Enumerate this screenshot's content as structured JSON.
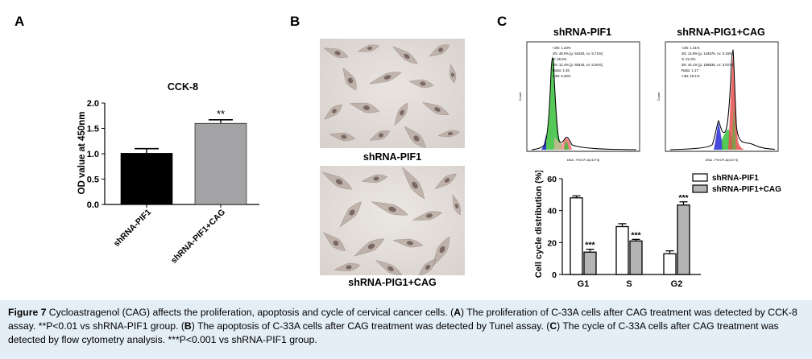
{
  "panels": {
    "a": "A",
    "b": "B",
    "c": "C"
  },
  "panel_b": {
    "top_label": "shRNA-PIF1",
    "bottom_label": "shRNA-PIG1+CAG"
  },
  "panel_c_flow": {
    "left_title": "shRNA-PIF1",
    "right_title": "shRNA-PIG1+CAG",
    "left_stats": [
      "<2N: 1.23%",
      "2N: 48.0%  [μ: 64320, cv: 5.71%]",
      "S: 29.2%",
      "4N: 12.4%  [μ: 93440, cv: 8.25%]",
      "Ratio: 1.45",
      ">4N: 9.20%"
    ],
    "right_stats": [
      "<2N: 1.31%",
      "2N: 14.9%  [μ: 144576, cv: 3.16%]",
      "S: 21.0%",
      "4N: 44.1%  [μ: 169536, cv: 3.01%]",
      "Ratio: 1.17",
      ">4N: 19.1%"
    ],
    "y_axis": "Count",
    "x_axis": "DNA - PerCP-A(x10^4)"
  },
  "caption": {
    "figure_label": "Figure 7",
    "intro": " Cycloastragenol (CAG) affects the proliferation, apoptosis and cycle of cervical cancer cells. (",
    "a": "A",
    "a_text": ") The proliferation of C-33A cells after CAG treatment was detected by CCK-8 assay. **P<0.01 vs shRNA-PIF1 group. (",
    "b": "B",
    "b_text": ") The apoptosis of C-33A cells after CAG treatment was detected by Tunel assay. (",
    "c": "C",
    "c_text": ") The cycle of C-33A cells after CAG treatment was detected by flow cytometry analysis. ***P<0.001 vs shRNA-PIF1 group."
  },
  "chart_data": [
    {
      "type": "bar",
      "title": "CCK-8",
      "ylabel": "OD value at 450nm",
      "xlabel": "",
      "categories": [
        "shRNA-PIF1",
        "shRNA-PIF1+CAG"
      ],
      "values": [
        1.01,
        1.6
      ],
      "errors": [
        0.09,
        0.07
      ],
      "colors": [
        "#000000",
        "#a3a3a5"
      ],
      "ylim": [
        0,
        2.0
      ],
      "yticks": [
        "0.0",
        "0.5",
        "1.0",
        "1.5",
        "2.0"
      ],
      "annotations": [
        "",
        "**"
      ]
    },
    {
      "type": "bar",
      "ylabel": "Cell cycle distribution (%)",
      "xlabel": "",
      "categories": [
        "G1",
        "S",
        "G2"
      ],
      "ylim": [
        0,
        60
      ],
      "yticks": [
        "0",
        "20",
        "40",
        "60"
      ],
      "legend_position": "top-right",
      "series": [
        {
          "name": "shRNA-PIF1",
          "color": "#ffffff",
          "values": [
            48,
            30,
            13
          ],
          "errors": [
            1.2,
            1.8,
            1.8
          ],
          "annotations": [
            "",
            "",
            ""
          ]
        },
        {
          "name": "shRNA-PIF1+CAG",
          "color": "#b4b4b4",
          "values": [
            14,
            21,
            43.5
          ],
          "errors": [
            1.8,
            1.0,
            2.0
          ],
          "annotations": [
            "***",
            "***",
            "***"
          ]
        }
      ]
    }
  ]
}
